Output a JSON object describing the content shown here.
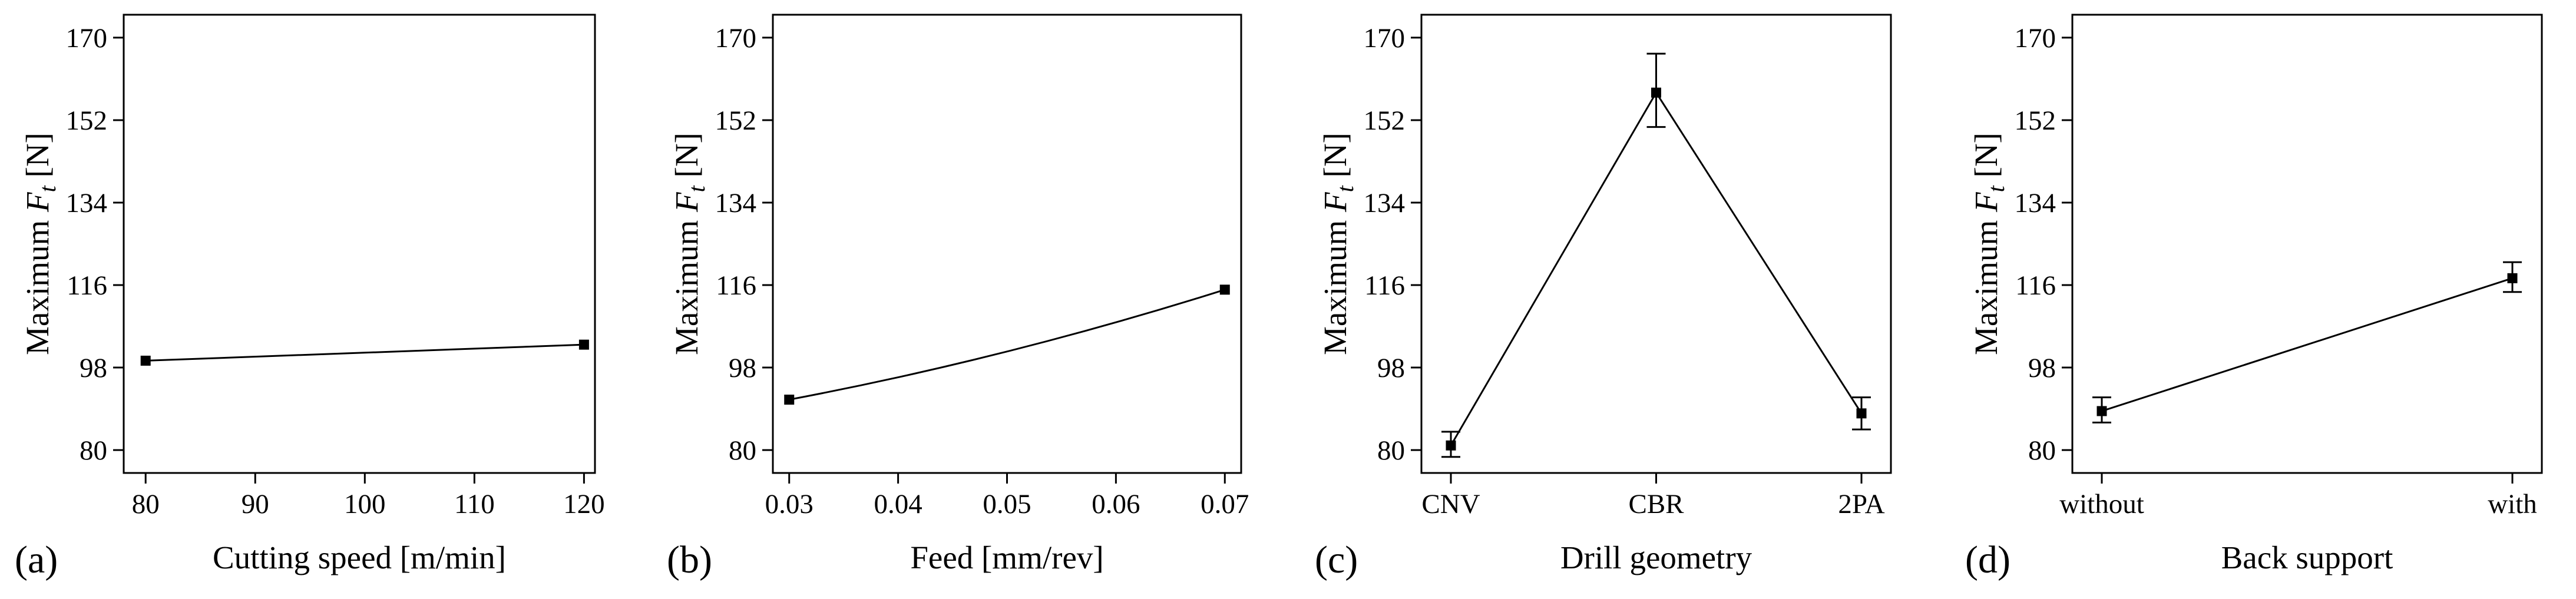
{
  "chart_data": [
    {
      "type": "line",
      "panel_label": "(a)",
      "xlabel": "Cutting speed [m/min]",
      "ylabel_prefix": "Maximum ",
      "ylabel_var": "F",
      "ylabel_sub": "t",
      "ylabel_suffix": " [N]",
      "xaxis": "numeric",
      "xlim": [
        78,
        121
      ],
      "xticks": [
        80,
        90,
        100,
        110,
        120
      ],
      "xtick_labels": [
        "80",
        "90",
        "100",
        "110",
        "120"
      ],
      "ylim": [
        75,
        175
      ],
      "yticks": [
        80,
        98,
        116,
        134,
        152,
        170
      ],
      "ytick_labels": [
        "80",
        "98",
        "116",
        "134",
        "152",
        "170"
      ],
      "curve": "straight",
      "points": [
        {
          "x": 80,
          "y": 99.5
        },
        {
          "x": 120,
          "y": 103
        }
      ]
    },
    {
      "type": "line",
      "panel_label": "(b)",
      "xlabel": "Feed [mm/rev]",
      "ylabel_prefix": "Maximum ",
      "ylabel_var": "F",
      "ylabel_sub": "t",
      "ylabel_suffix": " [N]",
      "xaxis": "numeric",
      "xlim": [
        0.0285,
        0.0715
      ],
      "xticks": [
        0.03,
        0.04,
        0.05,
        0.06,
        0.07
      ],
      "xtick_labels": [
        "0.03",
        "0.04",
        "0.05",
        "0.06",
        "0.07"
      ],
      "ylim": [
        75,
        175
      ],
      "yticks": [
        80,
        98,
        116,
        134,
        152,
        170
      ],
      "ytick_labels": [
        "80",
        "98",
        "116",
        "134",
        "152",
        "170"
      ],
      "curve": "smooth",
      "curve_mid": {
        "x": 0.05,
        "y": 101.5
      },
      "points": [
        {
          "x": 0.03,
          "y": 91
        },
        {
          "x": 0.07,
          "y": 115
        }
      ]
    },
    {
      "type": "line",
      "panel_label": "(c)",
      "xlabel": "Drill geometry",
      "ylabel_prefix": "Maximum ",
      "ylabel_var": "F",
      "ylabel_sub": "t",
      "ylabel_suffix": " [N]",
      "xaxis": "categorical",
      "categories": [
        "CNV",
        "CBR",
        "2PA"
      ],
      "ylim": [
        75,
        175
      ],
      "yticks": [
        80,
        98,
        116,
        134,
        152,
        170
      ],
      "ytick_labels": [
        "80",
        "98",
        "116",
        "134",
        "152",
        "170"
      ],
      "curve": "straight",
      "points": [
        {
          "x": "CNV",
          "y": 81,
          "err_low": 78.5,
          "err_high": 84
        },
        {
          "x": "CBR",
          "y": 158,
          "err_low": 150.5,
          "err_high": 166.5
        },
        {
          "x": "2PA",
          "y": 88,
          "err_low": 84.5,
          "err_high": 91.5
        }
      ]
    },
    {
      "type": "line",
      "panel_label": "(d)",
      "xlabel": "Back support",
      "ylabel_prefix": "Maximum ",
      "ylabel_var": "F",
      "ylabel_sub": "t",
      "ylabel_suffix": " [N]",
      "xaxis": "categorical",
      "categories": [
        "without",
        "with"
      ],
      "ylim": [
        75,
        175
      ],
      "yticks": [
        80,
        98,
        116,
        134,
        152,
        170
      ],
      "ytick_labels": [
        "80",
        "98",
        "116",
        "134",
        "152",
        "170"
      ],
      "curve": "straight",
      "points": [
        {
          "x": "without",
          "y": 88.5,
          "err_low": 86,
          "err_high": 91.5
        },
        {
          "x": "with",
          "y": 117.5,
          "err_low": 114.5,
          "err_high": 121
        }
      ]
    }
  ]
}
